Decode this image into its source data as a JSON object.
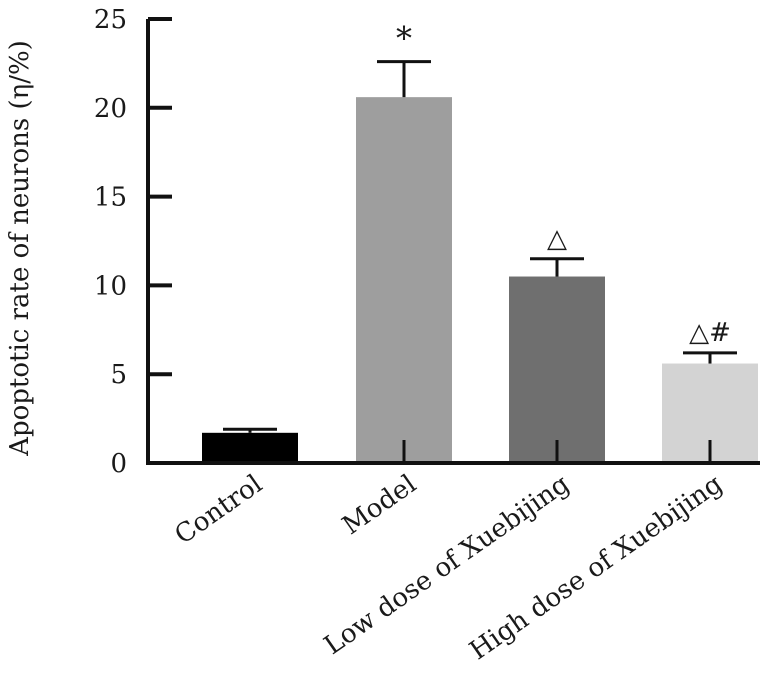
{
  "chart_data": {
    "type": "bar",
    "title": "",
    "xlabel": "",
    "ylabel": "Apoptotic rate of neurons (η/%)",
    "ylim": [
      0,
      25
    ],
    "yticks": [
      0,
      5,
      10,
      15,
      20,
      25
    ],
    "grid": false,
    "legend": "none",
    "categories": [
      "Control",
      "Model",
      "Low dose of Xuebijing",
      "High dose of Xuebijing"
    ],
    "values": [
      1.7,
      20.6,
      10.5,
      5.6
    ],
    "errors": [
      0.2,
      2.0,
      1.0,
      0.6
    ],
    "annotations": [
      "",
      "*",
      "△",
      "△#"
    ],
    "colors": [
      "#000000",
      "#9e9e9e",
      "#6f6f6f",
      "#d3d3d3"
    ]
  }
}
